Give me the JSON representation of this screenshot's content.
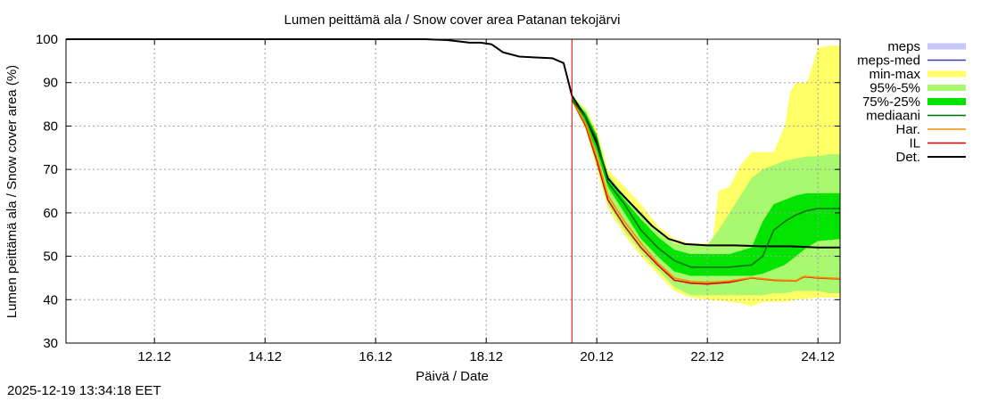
{
  "chart_data": {
    "type": "area",
    "title": "Lumen peittämä ala / Snow cover area Patanan tekojärvi",
    "xlabel": "Päivä / Date",
    "ylabel": "Lumen peittämä ala / Snow cover area (%)",
    "x_unit": "days since 11.12 00:00",
    "xlim": [
      -0.6,
      13.4
    ],
    "ylim": [
      30,
      100
    ],
    "x_ticks": [
      {
        "value": 1,
        "label": "12.12"
      },
      {
        "value": 3,
        "label": "14.12"
      },
      {
        "value": 5,
        "label": "16.12"
      },
      {
        "value": 7,
        "label": "18.12"
      },
      {
        "value": 9,
        "label": "20.12"
      },
      {
        "value": 11,
        "label": "22.12"
      },
      {
        "value": 13,
        "label": "24.12"
      }
    ],
    "y_ticks": [
      30,
      40,
      50,
      60,
      70,
      80,
      90,
      100
    ],
    "grid": true,
    "forecast_start_x": 8.55,
    "legend_position": "top-right outside",
    "legend": [
      {
        "label": "meps",
        "color": "#c6c6fa",
        "kind": "band"
      },
      {
        "label": "meps-med",
        "color": "#4040a0",
        "kind": "line"
      },
      {
        "label": "min-max",
        "color": "#ffff66",
        "kind": "band"
      },
      {
        "label": "95%-5%",
        "color": "#a8f870",
        "kind": "band"
      },
      {
        "label": "75%-25%",
        "color": "#00e400",
        "kind": "band"
      },
      {
        "label": "mediaani",
        "color": "#007000",
        "kind": "line"
      },
      {
        "label": "Har.",
        "color": "#ff8c00",
        "kind": "line"
      },
      {
        "label": "IL",
        "color": "#dd0000",
        "kind": "line"
      },
      {
        "label": "Det.",
        "color": "#000000",
        "kind": "line"
      }
    ],
    "series": [
      {
        "name": "Det.",
        "color": "#000000",
        "x": [
          -0.6,
          5.9,
          6.3,
          6.7,
          6.9,
          7.1,
          7.3,
          7.6,
          7.9,
          8.2,
          8.4,
          8.55,
          8.8,
          9.0,
          9.2,
          9.4,
          9.7,
          10.0,
          10.3,
          10.6,
          11.0,
          11.5,
          12.0,
          12.5,
          13.0,
          13.4
        ],
        "y": [
          100,
          100,
          99.8,
          99.2,
          99.2,
          98.8,
          97.0,
          96.0,
          95.8,
          95.6,
          94.5,
          87,
          82,
          76,
          68,
          65,
          61,
          57,
          54,
          52.8,
          52.5,
          52.5,
          52.3,
          52.3,
          52.0,
          52.0
        ]
      },
      {
        "name": "IL",
        "color": "#dd0000",
        "x": [
          8.55,
          8.8,
          9.0,
          9.2,
          9.5,
          9.8,
          10.1,
          10.4,
          10.7,
          11.0,
          11.4,
          11.8,
          12.2,
          12.6,
          12.75,
          13.0,
          13.4
        ],
        "y": [
          86,
          80,
          72,
          63,
          57,
          52,
          48,
          44.5,
          43.8,
          43.6,
          44.0,
          45.0,
          44.5,
          44.3,
          45.3,
          45.0,
          44.8
        ]
      },
      {
        "name": "Har.",
        "color": "#ff8c00",
        "x": [
          8.55,
          8.8,
          9.0,
          9.2,
          9.5,
          9.8,
          10.1,
          10.4,
          10.7,
          11.0,
          11.4,
          11.8,
          12.2,
          12.6,
          12.75,
          13.0,
          13.4
        ],
        "y": [
          86,
          80.5,
          73,
          64,
          58,
          53,
          48.5,
          45,
          44.2,
          44.0,
          44.3,
          45.1,
          44.6,
          44.4,
          45.4,
          45.1,
          44.9
        ]
      },
      {
        "name": "mediaani",
        "color": "#007000",
        "x": [
          8.55,
          8.8,
          9.0,
          9.2,
          9.5,
          9.8,
          10.1,
          10.4,
          10.7,
          11.0,
          11.4,
          11.8,
          12.0,
          12.2,
          12.4,
          12.6,
          12.8,
          13.0,
          13.4
        ],
        "y": [
          86,
          82,
          77,
          67,
          62,
          56,
          52,
          49,
          47.5,
          47.5,
          47.5,
          48,
          50,
          56,
          58,
          59.5,
          60.5,
          61,
          61
        ]
      },
      {
        "name": "min-max",
        "color": "#ffff66",
        "x": [
          8.55,
          8.8,
          9.0,
          9.2,
          9.5,
          9.8,
          10.1,
          10.4,
          10.7,
          11.0,
          11.1,
          11.2,
          11.4,
          11.6,
          11.8,
          12.0,
          12.2,
          12.4,
          12.5,
          12.6,
          12.8,
          13.0,
          13.2,
          13.4
        ],
        "upper": [
          87,
          84,
          79,
          70,
          66,
          62,
          57,
          54,
          53,
          53,
          54,
          65,
          66,
          71,
          74,
          74,
          74,
          80,
          88,
          90,
          90,
          98,
          98.5,
          98.5
        ],
        "lower": [
          86,
          79,
          70,
          61,
          55,
          50,
          46,
          42,
          40.5,
          40,
          39.8,
          39.8,
          39.5,
          39.2,
          38.5,
          39.5,
          39.5,
          39.5,
          39.7,
          40,
          40.2,
          40.5,
          40.5,
          40.5
        ]
      },
      {
        "name": "95%-5%",
        "color": "#a8f870",
        "x": [
          8.55,
          8.8,
          9.0,
          9.2,
          9.5,
          9.8,
          10.1,
          10.4,
          10.7,
          11.0,
          11.2,
          11.4,
          11.6,
          11.8,
          12.0,
          12.2,
          12.4,
          12.6,
          12.8,
          13.0,
          13.2,
          13.4
        ],
        "upper": [
          87,
          83.5,
          78,
          69,
          64,
          60,
          56,
          53,
          52.5,
          52.5,
          56,
          60,
          64,
          68,
          70,
          71,
          72,
          72.5,
          73,
          73,
          73.5,
          73.5
        ],
        "lower": [
          86,
          79.5,
          71,
          62,
          56,
          51,
          47,
          43,
          41,
          41,
          41,
          41,
          41,
          41,
          41,
          41.5,
          41.5,
          42,
          42,
          42,
          41.5,
          41.5
        ]
      },
      {
        "name": "75%-25%",
        "color": "#00e400",
        "x": [
          8.55,
          8.8,
          9.0,
          9.2,
          9.5,
          9.8,
          10.1,
          10.4,
          10.7,
          11.0,
          11.4,
          11.8,
          12.0,
          12.2,
          12.4,
          12.6,
          12.8,
          13.0,
          13.4
        ],
        "upper": [
          86.5,
          83,
          78,
          68,
          63,
          58.5,
          54.5,
          51.5,
          50.5,
          50.5,
          50.5,
          52,
          58,
          62,
          63,
          64,
          64.5,
          64.5,
          64.5
        ],
        "lower": [
          86,
          80.5,
          74,
          66,
          60,
          54,
          50,
          46.5,
          45.5,
          45.5,
          45.5,
          45.5,
          46,
          47,
          48,
          50,
          52,
          53.5,
          54
        ]
      }
    ]
  },
  "footer": {
    "timestamp": "2025-12-19 13:34:18 EET"
  }
}
